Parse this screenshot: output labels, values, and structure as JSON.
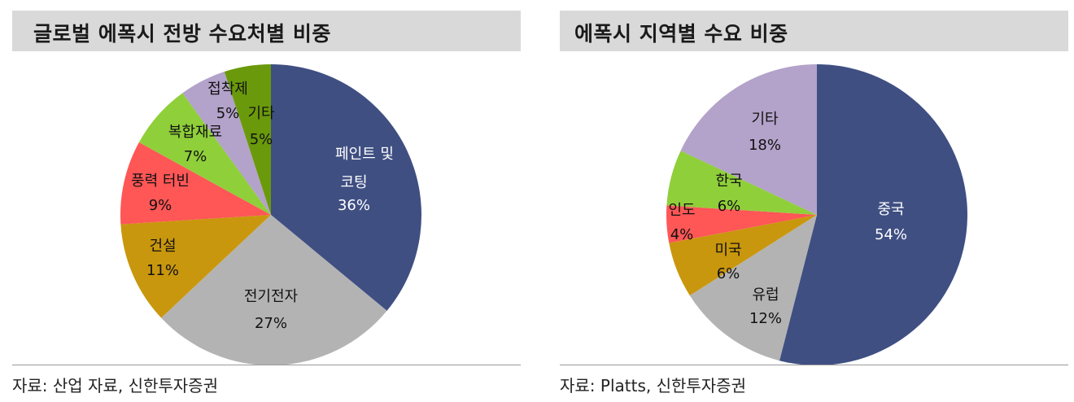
{
  "left": {
    "title": "글로벌 에폭시 전방 수요처별 비중",
    "source": "자료: 산업 자료, 신한투자증권"
  },
  "right": {
    "title": "에폭시 지역별 수요 비중",
    "source": "자료: Platts, 신한투자증권"
  },
  "chart_data": [
    {
      "type": "pie",
      "title": "글로벌 에폭시 전방 수요처별 비중",
      "slices": [
        {
          "label": "페인트 및 코팅",
          "value": 36,
          "text": "36%",
          "color": "#3f4f82",
          "label_color": "#ffffff"
        },
        {
          "label": "전기전자",
          "value": 27,
          "text": "27%",
          "color": "#b3b3b3",
          "label_color": "#111111"
        },
        {
          "label": "건설",
          "value": 11,
          "text": "11%",
          "color": "#c9970d",
          "label_color": "#111111"
        },
        {
          "label": "풍력 터빈",
          "value": 9,
          "text": "9%",
          "color": "#ff5656",
          "label_color": "#111111"
        },
        {
          "label": "복합재료",
          "value": 7,
          "text": "7%",
          "color": "#8fcf3a",
          "label_color": "#111111"
        },
        {
          "label": "접착제",
          "value": 5,
          "text": "5%",
          "color": "#b3a2c9",
          "label_color": "#111111"
        },
        {
          "label": "기타",
          "value": 5,
          "text": "5%",
          "color": "#6a9a0b",
          "label_color": "#111111"
        }
      ]
    },
    {
      "type": "pie",
      "title": "에폭시 지역별 수요 비중",
      "slices": [
        {
          "label": "중국",
          "value": 54,
          "text": "54%",
          "color": "#3f4f82",
          "label_color": "#ffffff"
        },
        {
          "label": "유럽",
          "value": 12,
          "text": "12%",
          "color": "#b3b3b3",
          "label_color": "#111111"
        },
        {
          "label": "미국",
          "value": 6,
          "text": "6%",
          "color": "#c9970d",
          "label_color": "#111111"
        },
        {
          "label": "인도",
          "value": 4,
          "text": "4%",
          "color": "#ff5656",
          "label_color": "#111111"
        },
        {
          "label": "한국",
          "value": 6,
          "text": "6%",
          "color": "#8fcf3a",
          "label_color": "#111111"
        },
        {
          "label": "기타",
          "value": 18,
          "text": "18%",
          "color": "#b3a2c9",
          "label_color": "#111111"
        }
      ]
    }
  ]
}
